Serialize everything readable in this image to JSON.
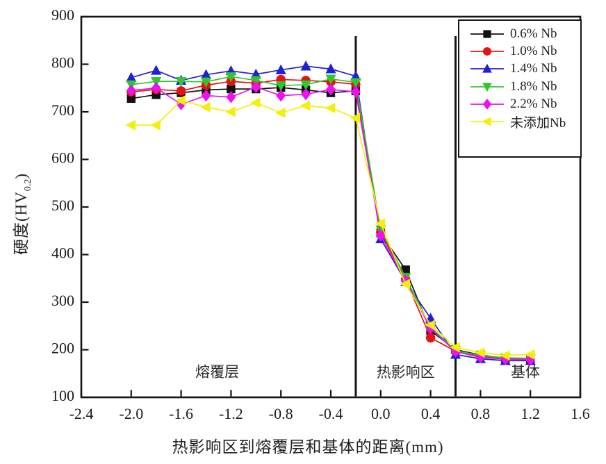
{
  "chart_data": {
    "type": "line",
    "title": "",
    "xlabel": "热影响区到熔覆层和基体的距离(mm)",
    "ylabel_main": "硬度(HV",
    "ylabel_sub": "0.2",
    "ylabel_close": ")",
    "xlim": [
      -2.4,
      1.6
    ],
    "ylim": [
      100,
      900
    ],
    "xticks": [
      -2.4,
      -2.0,
      -1.6,
      -1.2,
      -0.8,
      -0.4,
      0.0,
      0.4,
      0.8,
      1.2,
      1.6
    ],
    "xtick_labels": [
      "-2.4",
      "-2.0",
      "-1.6",
      "-1.2",
      "-0.8",
      "-0.4",
      "0.0",
      "0.4",
      "0.8",
      "1.2",
      "1.6"
    ],
    "yticks": [
      100,
      200,
      300,
      400,
      500,
      600,
      700,
      800,
      900
    ],
    "ytick_labels": [
      "100",
      "200",
      "300",
      "400",
      "500",
      "600",
      "700",
      "800",
      "900"
    ],
    "grid": false,
    "legend_position": "top-right",
    "x": [
      -2.0,
      -1.8,
      -1.6,
      -1.4,
      -1.2,
      -1.0,
      -0.8,
      -0.6,
      -0.4,
      -0.2,
      0.0,
      0.2,
      0.4,
      0.6,
      0.8,
      1.0,
      1.2
    ],
    "series": [
      {
        "name": "0.6% Nb",
        "color": "#111111",
        "marker": "square",
        "values": [
          728,
          736,
          740,
          746,
          748,
          748,
          751,
          746,
          740,
          744,
          445,
          368,
          240,
          200,
          189,
          182,
          180
        ]
      },
      {
        "name": "1.0% Nb",
        "color": "#e31414",
        "marker": "circle",
        "values": [
          742,
          747,
          744,
          756,
          764,
          760,
          768,
          766,
          763,
          758,
          447,
          348,
          225,
          197,
          186,
          181,
          180
        ]
      },
      {
        "name": "1.4% Nb",
        "color": "#1f1fd8",
        "marker": "triangle-up",
        "values": [
          772,
          787,
          766,
          778,
          786,
          779,
          788,
          796,
          790,
          775,
          433,
          343,
          266,
          190,
          181,
          177,
          177
        ]
      },
      {
        "name": "1.8% Nb",
        "color": "#2ec82e",
        "marker": "triangle-down",
        "values": [
          757,
          764,
          764,
          763,
          774,
          766,
          755,
          757,
          769,
          762,
          452,
          352,
          248,
          198,
          188,
          183,
          182
        ]
      },
      {
        "name": "2.2% Nb",
        "color": "#ee10ee",
        "marker": "diamond",
        "values": [
          745,
          750,
          716,
          734,
          731,
          752,
          734,
          737,
          747,
          742,
          440,
          345,
          245,
          196,
          184,
          180,
          179
        ]
      },
      {
        "name": "未添加Nb",
        "color": "#f3ef0c",
        "marker": "triangle-left",
        "values": [
          672,
          672,
          724,
          710,
          700,
          719,
          698,
          713,
          708,
          687,
          465,
          338,
          252,
          205,
          194,
          188,
          190
        ]
      }
    ],
    "vlines": [
      -0.2,
      0.6
    ],
    "region_labels": [
      {
        "text": "熔覆层",
        "x": -1.31,
        "y": 150
      },
      {
        "text": "热影响区",
        "x": 0.2,
        "y": 149
      },
      {
        "text": "基体",
        "x": 1.16,
        "y": 150
      }
    ]
  }
}
